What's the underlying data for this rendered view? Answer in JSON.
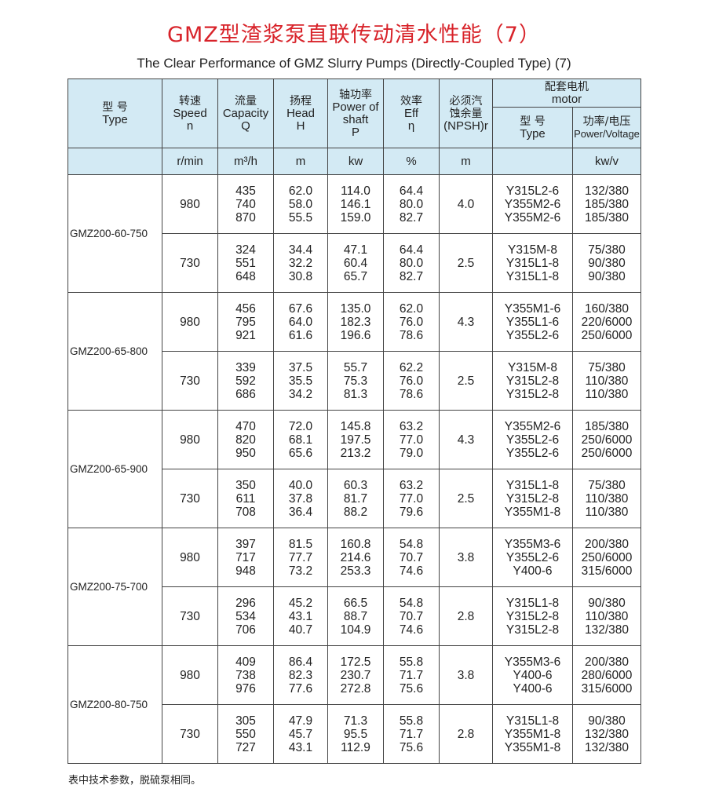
{
  "title_cn": "GMZ型渣浆泵直联传动清水性能（7）",
  "title_en": "The Clear Performance of GMZ Slurry Pumps (Directly-Coupled Type) (7)",
  "header": {
    "type_cn": "型 号",
    "type_en": "Type",
    "speed_cn": "转速",
    "speed_en": "Speed",
    "speed_sym": "n",
    "cap_cn": "流量",
    "cap_en": "Capacity",
    "cap_sym": "Q",
    "head_cn": "扬程",
    "head_en": "Head",
    "head_sym": "H",
    "power_cn": "轴功率",
    "power_en1": "Power of",
    "power_en2": "shaft",
    "power_sym": "P",
    "eff_cn": "效率",
    "eff_en": "Eff",
    "eff_sym": "η",
    "npsh_cn1": "必须汽",
    "npsh_cn2": "蚀余量",
    "npsh_en": "(NPSH)r",
    "motor_cn": "配套电机",
    "motor_en": "motor",
    "mtype_cn": "型 号",
    "mtype_en": "Type",
    "mpower_cn": "功率/电压",
    "mpower_en": "Power/Voltage"
  },
  "units": {
    "speed": "r/min",
    "cap": "m³/h",
    "head": "m",
    "power": "kw",
    "eff": "%",
    "npsh": "m",
    "motor_type": "",
    "motor_power": "kw/v"
  },
  "rows": [
    {
      "model": "GMZ200-60-750",
      "groups": [
        {
          "speed": "980",
          "cap": "435\n740\n870",
          "head": "62.0\n58.0\n55.5",
          "power": "114.0\n146.1\n159.0",
          "eff": "64.4\n80.0\n82.7",
          "npsh": "4.0",
          "mtype": "Y315L2-6\nY355M2-6\nY355M2-6",
          "mpower": "132/380\n185/380\n185/380"
        },
        {
          "speed": "730",
          "cap": "324\n551\n648",
          "head": "34.4\n32.2\n30.8",
          "power": "47.1\n60.4\n65.7",
          "eff": "64.4\n80.0\n82.7",
          "npsh": "2.5",
          "mtype": "Y315M-8\nY315L1-8\nY315L1-8",
          "mpower": "75/380\n90/380\n90/380"
        }
      ]
    },
    {
      "model": "GMZ200-65-800",
      "groups": [
        {
          "speed": "980",
          "cap": "456\n795\n921",
          "head": "67.6\n64.0\n61.6",
          "power": "135.0\n182.3\n196.6",
          "eff": "62.0\n76.0\n78.6",
          "npsh": "4.3",
          "mtype": "Y355M1-6\nY355L1-6\nY355L2-6",
          "mpower": "160/380\n220/6000\n250/6000"
        },
        {
          "speed": "730",
          "cap": "339\n592\n686",
          "head": "37.5\n35.5\n34.2",
          "power": "55.7\n75.3\n81.3",
          "eff": "62.2\n76.0\n78.6",
          "npsh": "2.5",
          "mtype": "Y315M-8\nY315L2-8\nY315L2-8",
          "mpower": "75/380\n110/380\n110/380"
        }
      ]
    },
    {
      "model": "GMZ200-65-900",
      "groups": [
        {
          "speed": "980",
          "cap": "470\n820\n950",
          "head": "72.0\n68.1\n65.6",
          "power": "145.8\n197.5\n213.2",
          "eff": "63.2\n77.0\n79.0",
          "npsh": "4.3",
          "mtype": "Y355M2-6\nY355L2-6\nY355L2-6",
          "mpower": "185/380\n250/6000\n250/6000"
        },
        {
          "speed": "730",
          "cap": "350\n611\n708",
          "head": "40.0\n37.8\n36.4",
          "power": "60.3\n81.7\n88.2",
          "eff": "63.2\n77.0\n79.6",
          "npsh": "2.5",
          "mtype": "Y315L1-8\nY315L2-8\nY355M1-8",
          "mpower": "75/380\n110/380\n110/380"
        }
      ]
    },
    {
      "model": "GMZ200-75-700",
      "groups": [
        {
          "speed": "980",
          "cap": "397\n717\n948",
          "head": "81.5\n77.7\n73.2",
          "power": "160.8\n214.6\n253.3",
          "eff": "54.8\n70.7\n74.6",
          "npsh": "3.8",
          "mtype": "Y355M3-6\nY355L2-6\nY400-6",
          "mpower": "200/380\n250/6000\n315/6000"
        },
        {
          "speed": "730",
          "cap": "296\n534\n706",
          "head": "45.2\n43.1\n40.7",
          "power": "66.5\n88.7\n104.9",
          "eff": "54.8\n70.7\n74.6",
          "npsh": "2.8",
          "mtype": "Y315L1-8\nY315L2-8\nY315L2-8",
          "mpower": "90/380\n110/380\n132/380"
        }
      ]
    },
    {
      "model": "GMZ200-80-750",
      "groups": [
        {
          "speed": "980",
          "cap": "409\n738\n976",
          "head": "86.4\n82.3\n77.6",
          "power": "172.5\n230.7\n272.8",
          "eff": "55.8\n71.7\n75.6",
          "npsh": "3.8",
          "mtype": "Y355M3-6\nY400-6\nY400-6",
          "mpower": "200/380\n280/6000\n315/6000"
        },
        {
          "speed": "730",
          "cap": "305\n550\n727",
          "head": "47.9\n45.7\n43.1",
          "power": "71.3\n95.5\n112.9",
          "eff": "55.8\n71.7\n75.6",
          "npsh": "2.8",
          "mtype": "Y315L1-8\nY355M1-8\nY355M1-8",
          "mpower": "90/380\n132/380\n132/380"
        }
      ]
    }
  ],
  "footer": "表中技术参数，脱硫泵相同。"
}
